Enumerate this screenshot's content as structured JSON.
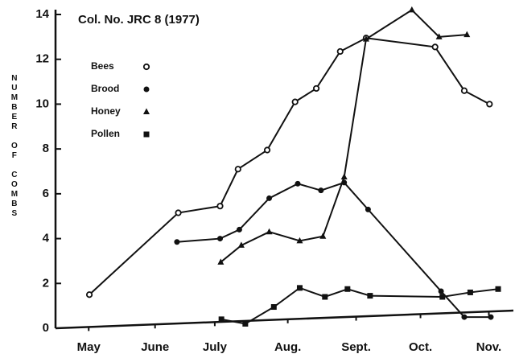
{
  "chart_data": {
    "type": "line",
    "title": "Col. No. JRC 8 (1977)",
    "y_label": "NUMBER OF COMBS",
    "xlim": [
      5,
      11.9
    ],
    "xticks": [
      {
        "value": 5.5,
        "label": "May"
      },
      {
        "value": 6.5,
        "label": "June"
      },
      {
        "value": 7.4,
        "label": "July"
      },
      {
        "value": 8.5,
        "label": "Aug."
      },
      {
        "value": 9.53,
        "label": "Sept."
      },
      {
        "value": 10.5,
        "label": "Oct."
      },
      {
        "value": 11.53,
        "label": "Nov."
      }
    ],
    "ylim": [
      0,
      14
    ],
    "yticks": [
      0,
      2,
      4,
      6,
      8,
      10,
      12,
      14
    ],
    "legend": "upper left",
    "series": [
      {
        "name": "Bees",
        "color": "#111111",
        "marker": "open-circle",
        "x": [
          5.51,
          6.85,
          7.48,
          7.75,
          8.19,
          8.61,
          8.93,
          9.29,
          9.68,
          10.72,
          11.16,
          11.54
        ],
        "values": [
          1.5,
          5.15,
          5.45,
          7.1,
          7.95,
          10.1,
          10.7,
          12.35,
          12.95,
          12.55,
          10.6,
          10.0
        ]
      },
      {
        "name": "Brood",
        "color": "#111111",
        "marker": "circle",
        "x": [
          6.83,
          7.48,
          7.77,
          8.22,
          8.65,
          9.0,
          9.35,
          9.71,
          10.81,
          11.16,
          11.56
        ],
        "values": [
          3.85,
          4.0,
          4.4,
          5.8,
          6.45,
          6.15,
          6.5,
          5.3,
          1.65,
          0.5,
          0.5
        ]
      },
      {
        "name": "Honey",
        "color": "#111111",
        "marker": "triangle",
        "x": [
          7.49,
          7.8,
          8.22,
          8.68,
          9.03,
          9.35,
          9.68,
          10.37,
          10.78,
          11.2
        ],
        "values": [
          2.95,
          3.7,
          4.3,
          3.9,
          4.1,
          6.75,
          12.9,
          14.2,
          13.0,
          13.1
        ]
      },
      {
        "name": "Pollen",
        "color": "#111111",
        "marker": "square",
        "x": [
          7.5,
          7.86,
          8.29,
          8.68,
          9.06,
          9.4,
          9.74,
          10.83,
          11.25,
          11.67
        ],
        "values": [
          0.4,
          0.2,
          0.95,
          1.8,
          1.4,
          1.75,
          1.45,
          1.4,
          1.6,
          1.75
        ]
      }
    ]
  }
}
